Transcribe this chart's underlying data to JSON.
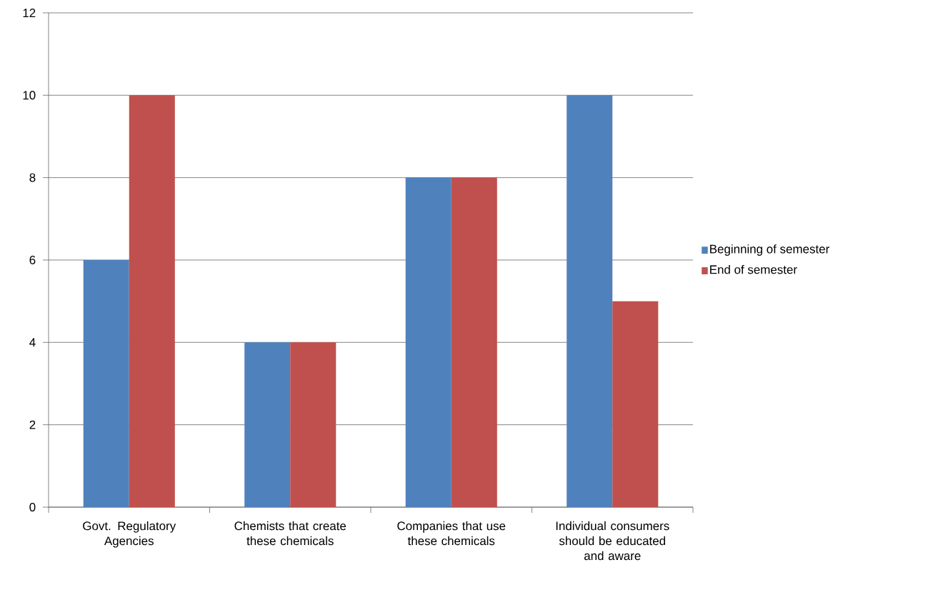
{
  "chart_data": {
    "type": "bar",
    "categories": [
      "Govt. Regulatory Agencies",
      "Chemists that create these chemicals",
      "Companies that use these chemicals",
      "Individual consumers should be educated and aware"
    ],
    "series": [
      {
        "name": "Beginning of semester",
        "color": "#4f81bd",
        "values": [
          6,
          4,
          8,
          10
        ]
      },
      {
        "name": "End of semester",
        "color": "#c0504d",
        "values": [
          10,
          4,
          8,
          5
        ]
      }
    ],
    "ylim": [
      0,
      12
    ],
    "yticks": [
      0,
      2,
      4,
      6,
      8,
      10,
      12
    ],
    "grid": "y",
    "legend": "right"
  }
}
